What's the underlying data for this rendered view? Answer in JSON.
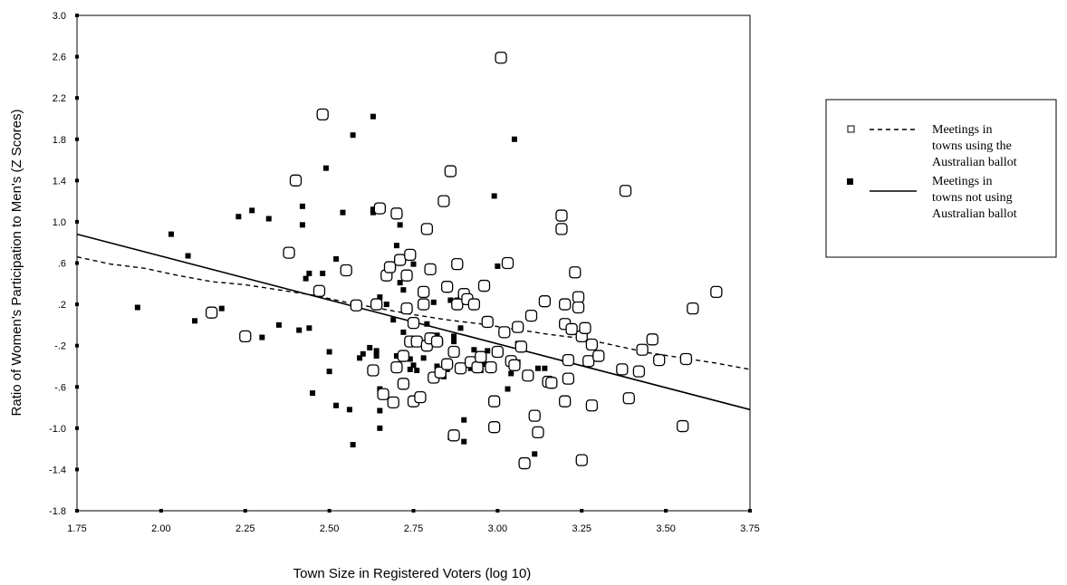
{
  "chart_data": {
    "type": "scatter",
    "xlabel": "Town Size in Registered Voters (log 10)",
    "ylabel": "Ratio of Women's Participation to Men's (Z Scores)",
    "xlim": [
      1.75,
      3.75
    ],
    "ylim": [
      -1.8,
      3.0
    ],
    "x_ticks": [
      "1.75",
      "2.00",
      "2.25",
      "2.50",
      "2.75",
      "3.00",
      "3.25",
      "3.50",
      "3.75"
    ],
    "y_ticks": [
      "3.0",
      "2.6",
      "2.2",
      "1.8",
      "1.4",
      "1.0",
      ".6",
      ".2",
      "-.2",
      "-.6",
      "-1.0",
      "-1.4",
      "-1.8"
    ],
    "grid": false,
    "legend_position": "right",
    "series": [
      {
        "name": "Meetings in towns using the Australian ballot",
        "marker": "open-square",
        "legend_lines": [
          "Meetings in",
          "towns using the",
          "Australian ballot"
        ],
        "fit": "loess-dashed",
        "points": [
          [
            2.15,
            0.12
          ],
          [
            2.25,
            -0.11
          ],
          [
            2.38,
            0.7
          ],
          [
            2.4,
            1.4
          ],
          [
            2.47,
            0.33
          ],
          [
            2.48,
            2.04
          ],
          [
            2.55,
            0.53
          ],
          [
            2.58,
            0.19
          ],
          [
            2.63,
            -0.44
          ],
          [
            2.64,
            0.2
          ],
          [
            2.65,
            1.13
          ],
          [
            2.66,
            -0.67
          ],
          [
            2.67,
            0.48
          ],
          [
            2.68,
            0.56
          ],
          [
            2.69,
            -0.75
          ],
          [
            2.7,
            1.08
          ],
          [
            2.7,
            -0.41
          ],
          [
            2.71,
            0.63
          ],
          [
            2.72,
            -0.3
          ],
          [
            2.72,
            -0.57
          ],
          [
            2.73,
            0.48
          ],
          [
            2.73,
            0.16
          ],
          [
            2.74,
            0.68
          ],
          [
            2.74,
            -0.16
          ],
          [
            2.75,
            0.02
          ],
          [
            2.75,
            -0.74
          ],
          [
            2.76,
            -0.16
          ],
          [
            2.77,
            -0.7
          ],
          [
            2.78,
            0.32
          ],
          [
            2.78,
            0.2
          ],
          [
            2.79,
            -0.2
          ],
          [
            2.79,
            0.93
          ],
          [
            2.8,
            0.54
          ],
          [
            2.8,
            -0.13
          ],
          [
            2.81,
            -0.51
          ],
          [
            2.82,
            -0.16
          ],
          [
            2.83,
            -0.46
          ],
          [
            2.84,
            1.2
          ],
          [
            2.85,
            0.37
          ],
          [
            2.85,
            -0.38
          ],
          [
            2.86,
            1.49
          ],
          [
            2.87,
            -1.07
          ],
          [
            2.87,
            -0.26
          ],
          [
            2.88,
            0.2
          ],
          [
            2.88,
            0.59
          ],
          [
            2.89,
            -0.42
          ],
          [
            2.9,
            0.3
          ],
          [
            2.91,
            0.25
          ],
          [
            2.92,
            -0.36
          ],
          [
            2.93,
            0.2
          ],
          [
            2.94,
            -0.41
          ],
          [
            2.95,
            -0.31
          ],
          [
            2.96,
            0.38
          ],
          [
            2.97,
            0.03
          ],
          [
            2.98,
            -0.41
          ],
          [
            2.99,
            -0.74
          ],
          [
            2.99,
            -0.99
          ],
          [
            3.0,
            -0.26
          ],
          [
            3.01,
            2.59
          ],
          [
            3.02,
            -0.07
          ],
          [
            3.03,
            0.6
          ],
          [
            3.04,
            -0.35
          ],
          [
            3.05,
            -0.39
          ],
          [
            3.06,
            -0.02
          ],
          [
            3.07,
            -0.21
          ],
          [
            3.08,
            -1.34
          ],
          [
            3.09,
            -0.49
          ],
          [
            3.1,
            0.09
          ],
          [
            3.11,
            -0.88
          ],
          [
            3.12,
            -1.04
          ],
          [
            3.14,
            0.23
          ],
          [
            3.15,
            -0.55
          ],
          [
            3.16,
            -0.56
          ],
          [
            3.19,
            1.06
          ],
          [
            3.19,
            0.93
          ],
          [
            3.2,
            -0.74
          ],
          [
            3.2,
            0.01
          ],
          [
            3.2,
            0.2
          ],
          [
            3.21,
            -0.52
          ],
          [
            3.21,
            -0.34
          ],
          [
            3.22,
            -0.04
          ],
          [
            3.23,
            0.51
          ],
          [
            3.24,
            0.27
          ],
          [
            3.24,
            0.17
          ],
          [
            3.25,
            -0.11
          ],
          [
            3.25,
            -1.31
          ],
          [
            3.26,
            -0.03
          ],
          [
            3.27,
            -0.35
          ],
          [
            3.28,
            -0.19
          ],
          [
            3.28,
            -0.78
          ],
          [
            3.3,
            -0.3
          ],
          [
            3.37,
            -0.43
          ],
          [
            3.38,
            1.3
          ],
          [
            3.39,
            -0.71
          ],
          [
            3.42,
            -0.45
          ],
          [
            3.43,
            -0.24
          ],
          [
            3.46,
            -0.14
          ],
          [
            3.48,
            -0.34
          ],
          [
            3.55,
            -0.98
          ],
          [
            3.56,
            -0.33
          ],
          [
            3.58,
            0.16
          ],
          [
            3.65,
            0.32
          ]
        ]
      },
      {
        "name": "Meetings in towns not using Australian ballot",
        "marker": "filled-square",
        "legend_lines": [
          "Meetings in",
          "towns not using",
          "Australian ballot"
        ],
        "fit": "linear-solid",
        "points": [
          [
            1.93,
            0.17
          ],
          [
            2.03,
            0.88
          ],
          [
            2.08,
            0.67
          ],
          [
            2.1,
            0.04
          ],
          [
            2.18,
            0.16
          ],
          [
            2.23,
            1.05
          ],
          [
            2.27,
            1.11
          ],
          [
            2.3,
            -0.12
          ],
          [
            2.32,
            1.03
          ],
          [
            2.35,
            0.0
          ],
          [
            2.41,
            -0.05
          ],
          [
            2.42,
            1.15
          ],
          [
            2.42,
            0.97
          ],
          [
            2.43,
            0.45
          ],
          [
            2.44,
            0.5
          ],
          [
            2.44,
            -0.03
          ],
          [
            2.45,
            -0.66
          ],
          [
            2.48,
            0.5
          ],
          [
            2.49,
            1.52
          ],
          [
            2.5,
            -0.45
          ],
          [
            2.5,
            -0.26
          ],
          [
            2.52,
            0.64
          ],
          [
            2.52,
            -0.78
          ],
          [
            2.54,
            1.09
          ],
          [
            2.56,
            -0.82
          ],
          [
            2.57,
            1.84
          ],
          [
            2.57,
            -1.16
          ],
          [
            2.59,
            -0.32
          ],
          [
            2.6,
            -0.28
          ],
          [
            2.62,
            -0.22
          ],
          [
            2.63,
            2.02
          ],
          [
            2.63,
            1.09
          ],
          [
            2.63,
            1.12
          ],
          [
            2.64,
            -0.25
          ],
          [
            2.64,
            -0.3
          ],
          [
            2.65,
            0.27
          ],
          [
            2.65,
            -0.62
          ],
          [
            2.65,
            -0.83
          ],
          [
            2.65,
            -1.0
          ],
          [
            2.67,
            0.2
          ],
          [
            2.68,
            0.54
          ],
          [
            2.69,
            0.56
          ],
          [
            2.69,
            0.05
          ],
          [
            2.7,
            0.77
          ],
          [
            2.7,
            -0.3
          ],
          [
            2.71,
            0.97
          ],
          [
            2.71,
            0.41
          ],
          [
            2.72,
            0.34
          ],
          [
            2.72,
            -0.07
          ],
          [
            2.74,
            -0.43
          ],
          [
            2.74,
            -0.33
          ],
          [
            2.75,
            -0.39
          ],
          [
            2.75,
            0.59
          ],
          [
            2.76,
            -0.44
          ],
          [
            2.77,
            0.19
          ],
          [
            2.78,
            -0.32
          ],
          [
            2.79,
            0.01
          ],
          [
            2.8,
            -0.15
          ],
          [
            2.81,
            0.22
          ],
          [
            2.82,
            -0.4
          ],
          [
            2.82,
            -0.1
          ],
          [
            2.83,
            -0.17
          ],
          [
            2.84,
            -0.5
          ],
          [
            2.85,
            -0.43
          ],
          [
            2.86,
            -1.09
          ],
          [
            2.86,
            0.24
          ],
          [
            2.87,
            -0.11
          ],
          [
            2.87,
            -0.16
          ],
          [
            2.88,
            0.24
          ],
          [
            2.89,
            0.26
          ],
          [
            2.89,
            -0.03
          ],
          [
            2.9,
            -1.13
          ],
          [
            2.9,
            -0.92
          ],
          [
            2.91,
            0.22
          ],
          [
            2.92,
            -0.42
          ],
          [
            2.93,
            -0.24
          ],
          [
            2.94,
            -0.42
          ],
          [
            2.95,
            -0.44
          ],
          [
            2.96,
            -0.38
          ],
          [
            2.97,
            -0.25
          ],
          [
            2.99,
            1.25
          ],
          [
            3.0,
            0.57
          ],
          [
            3.0,
            -0.24
          ],
          [
            3.02,
            -0.05
          ],
          [
            3.03,
            -0.62
          ],
          [
            3.04,
            -0.47
          ],
          [
            3.05,
            1.8
          ],
          [
            3.06,
            -0.36
          ],
          [
            3.06,
            -0.18
          ],
          [
            3.11,
            -1.25
          ],
          [
            3.12,
            -0.42
          ],
          [
            3.14,
            -0.42
          ],
          [
            3.16,
            -0.58
          ]
        ]
      }
    ],
    "loess_dashed": [
      [
        1.75,
        0.66
      ],
      [
        1.85,
        0.59
      ],
      [
        1.95,
        0.55
      ],
      [
        2.05,
        0.48
      ],
      [
        2.15,
        0.42
      ],
      [
        2.25,
        0.39
      ],
      [
        2.35,
        0.34
      ],
      [
        2.45,
        0.29
      ],
      [
        2.55,
        0.22
      ],
      [
        2.65,
        0.16
      ],
      [
        2.75,
        0.1
      ],
      [
        2.85,
        0.05
      ],
      [
        2.95,
        0.01
      ],
      [
        3.05,
        -0.04
      ],
      [
        3.15,
        -0.09
      ],
      [
        3.25,
        -0.13
      ],
      [
        3.35,
        -0.2
      ],
      [
        3.45,
        -0.27
      ],
      [
        3.55,
        -0.32
      ],
      [
        3.65,
        -0.37
      ],
      [
        3.75,
        -0.43
      ]
    ],
    "linear_fit": [
      [
        1.75,
        0.88
      ],
      [
        3.75,
        -0.82
      ]
    ]
  }
}
